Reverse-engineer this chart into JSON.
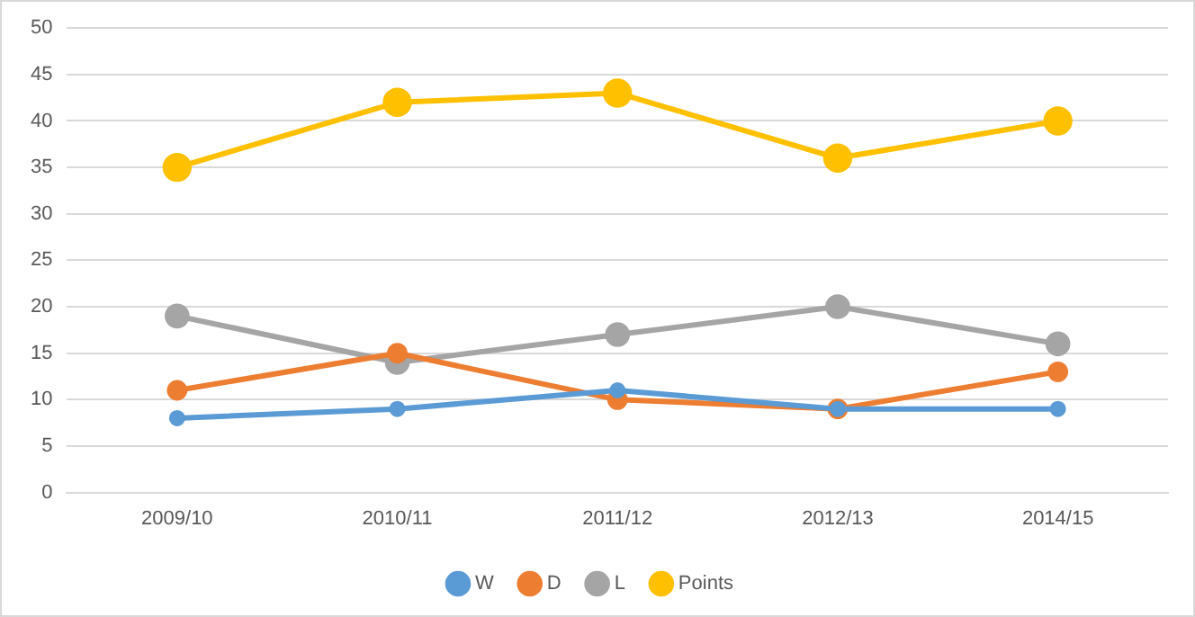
{
  "chart_data": {
    "type": "line",
    "categories": [
      "2009/10",
      "2010/11",
      "2011/12",
      "2012/13",
      "2014/15"
    ],
    "series": [
      {
        "name": "W",
        "color": "#5b9bd5",
        "values": [
          8,
          9,
          11,
          9,
          9
        ]
      },
      {
        "name": "D",
        "color": "#ed7d31",
        "values": [
          11,
          15,
          10,
          9,
          13
        ]
      },
      {
        "name": "L",
        "color": "#a5a5a5",
        "values": [
          19,
          14,
          17,
          20,
          16
        ]
      },
      {
        "name": "Points",
        "color": "#ffc000",
        "values": [
          35,
          42,
          43,
          36,
          40
        ]
      }
    ],
    "ylim": [
      0,
      50
    ],
    "yticks": [
      0,
      5,
      10,
      15,
      20,
      25,
      30,
      35,
      40,
      45,
      50
    ],
    "grid": "y",
    "legend": "bottom",
    "marker": "circle",
    "line_style": "solid"
  }
}
